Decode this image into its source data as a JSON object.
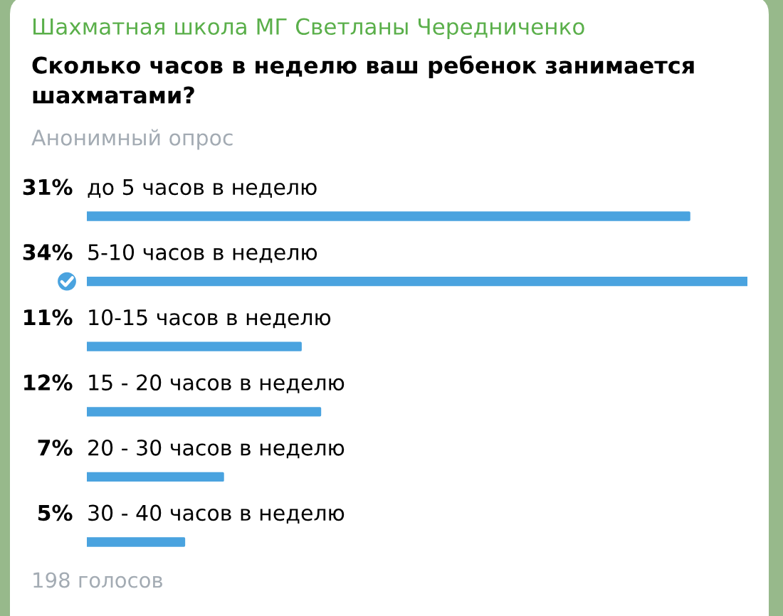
{
  "chart_data": {
    "type": "bar",
    "orientation": "horizontal",
    "title": "Сколько часов в неделю ваш ребенок занимается шахматами?",
    "subtitle": "Анонимный опрос",
    "categories": [
      "до 5 часов в неделю",
      "5-10 часов в неделю",
      "10-15 часов в неделю",
      "15 - 20 часов в неделю",
      "20 - 30 часов в неделю",
      "30 - 40 часов в неделю"
    ],
    "values": [
      31,
      34,
      11,
      12,
      7,
      5
    ],
    "value_labels": [
      "31%",
      "34%",
      "11%",
      "12%",
      "7%",
      "5%"
    ],
    "color": "#4aa3df",
    "annotations": [
      "Шахматная школа МГ Светланы Чередниченко",
      "198 голосов"
    ]
  }
}
